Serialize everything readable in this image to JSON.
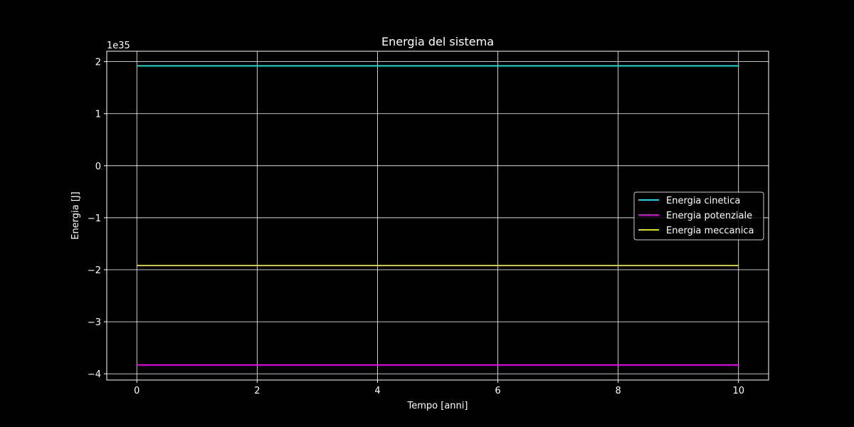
{
  "chart_data": {
    "type": "line",
    "title": "Energia del sistema",
    "xlabel": "Tempo [anni]",
    "ylabel": "Energia [J]",
    "y_offset_text": "1e35",
    "xlim": [
      -0.5,
      10.5
    ],
    "ylim": [
      -4.12,
      2.2
    ],
    "x_ticks": [
      0,
      2,
      4,
      6,
      8,
      10
    ],
    "x_tick_labels": [
      "0",
      "2",
      "4",
      "6",
      "8",
      "10"
    ],
    "y_ticks": [
      2,
      1,
      0,
      -1,
      -2,
      -3,
      -4
    ],
    "y_tick_labels": [
      "2",
      "1",
      "0",
      "−1",
      "−2",
      "−3",
      "−4"
    ],
    "grid": true,
    "legend_position": "center-right",
    "x": [
      0,
      10
    ],
    "series": [
      {
        "name": "Energia cinetica",
        "color": "#00ffff",
        "values": [
          1.92,
          1.92
        ]
      },
      {
        "name": "Energia potenziale",
        "color": "#ff00ff",
        "values": [
          -3.83,
          -3.83
        ]
      },
      {
        "name": "Energia meccanica",
        "color": "#ffff00",
        "values": [
          -1.92,
          -1.92
        ]
      }
    ],
    "colors": {
      "background": "#000000",
      "foreground": "#ffffff",
      "grid": "#ffffff"
    }
  }
}
